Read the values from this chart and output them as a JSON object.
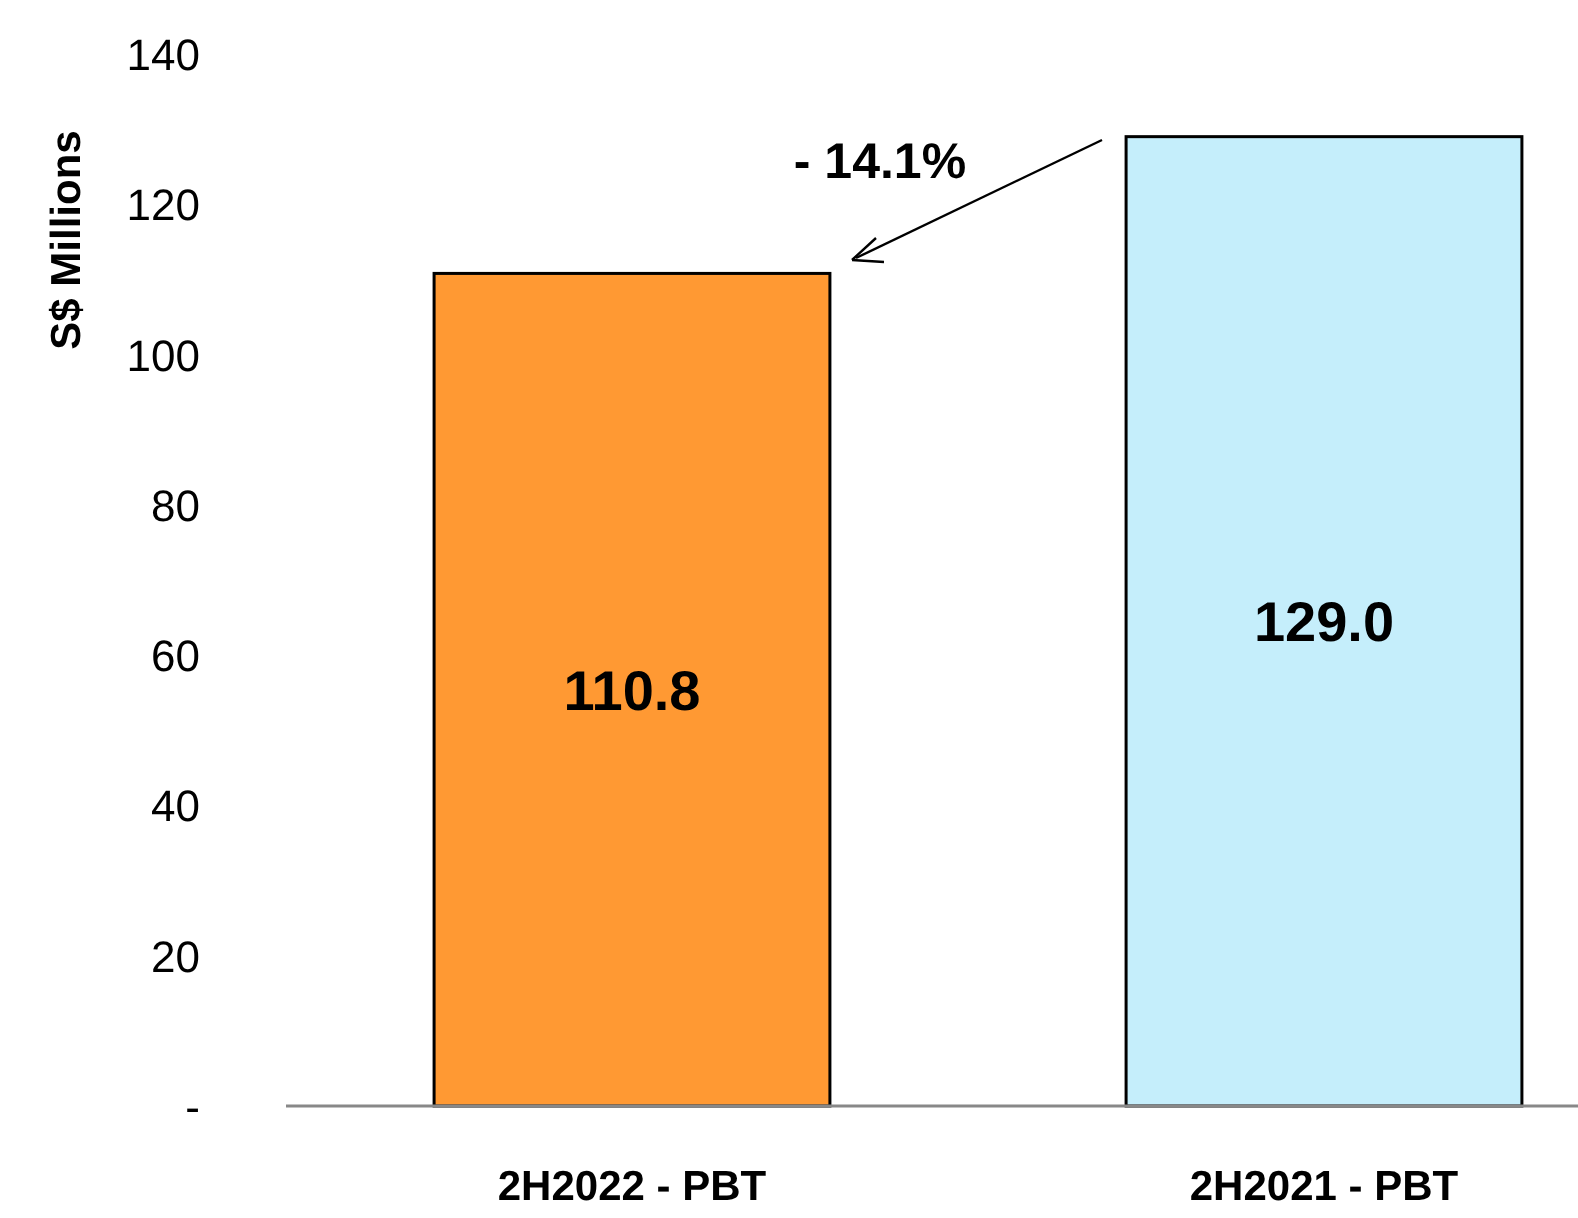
{
  "chart_data": {
    "type": "bar",
    "ylabel": "S$ Millions",
    "categories": [
      "2H2022 - PBT",
      "2H2021 - PBT"
    ],
    "values": [
      110.8,
      129.0
    ],
    "colors": [
      "#ff9933",
      "#c5eefb"
    ],
    "value_labels": [
      "110.8",
      "129.0"
    ],
    "ylim": [
      0,
      140
    ],
    "yticks": [
      {
        "value": 0,
        "label": "-"
      },
      20,
      40,
      60,
      80,
      100,
      120,
      140
    ],
    "annotations": [
      "- 14.1%"
    ]
  }
}
